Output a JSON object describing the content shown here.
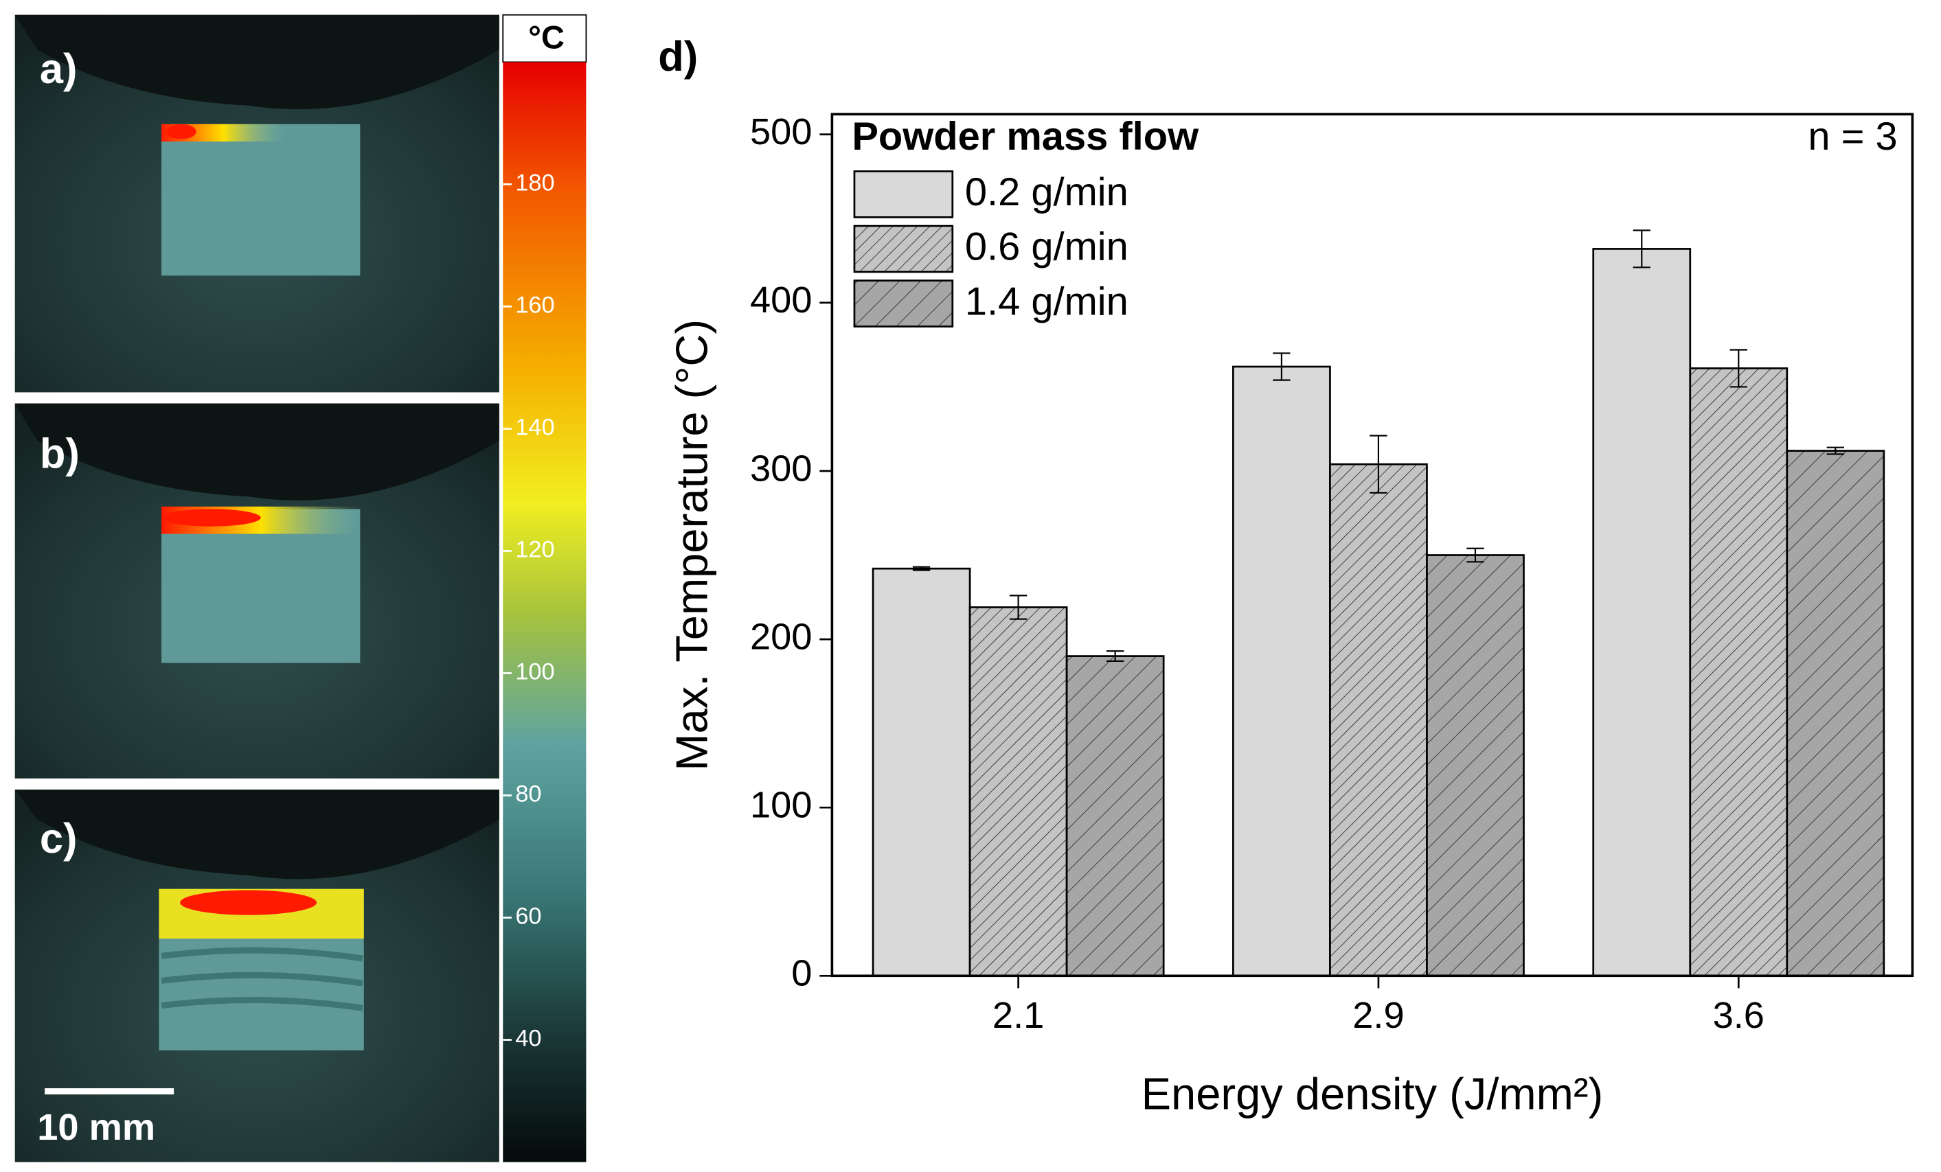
{
  "panels": [
    {
      "label": "a)"
    },
    {
      "label": "b)"
    },
    {
      "label": "c)"
    }
  ],
  "scale_bar": "10 mm",
  "colorbar": {
    "label": "°C",
    "lim": [
      20,
      200
    ],
    "ticks": [
      40,
      60,
      80,
      100,
      120,
      140,
      160,
      180
    ]
  },
  "chart_data": {
    "type": "bar",
    "panel_label": "d)",
    "x_label": "Energy density (J/mm²)",
    "y_label": "Max. Temperature (°C)",
    "annotation": "n = 3",
    "legend_title": "Powder mass flow",
    "legend": "upper left",
    "categories": [
      "2.1",
      "2.9",
      "3.6"
    ],
    "series": [
      {
        "name": "0.2 g/min",
        "color": "#d9d9d9",
        "hatch": false,
        "values": [
          242,
          362,
          432
        ],
        "errors": [
          1,
          8,
          11
        ]
      },
      {
        "name": "0.6 g/min",
        "color": "#c4c4c4",
        "hatch": true,
        "values": [
          219,
          304,
          361
        ],
        "errors": [
          7,
          17,
          11
        ]
      },
      {
        "name": "1.4 g/min",
        "color": "#a6a6a6",
        "hatch": true,
        "values": [
          190,
          250,
          312
        ],
        "errors": [
          3,
          4,
          2
        ]
      }
    ],
    "ylim": [
      0,
      512
    ],
    "yticks": [
      0,
      100,
      200,
      300,
      400,
      500
    ]
  }
}
